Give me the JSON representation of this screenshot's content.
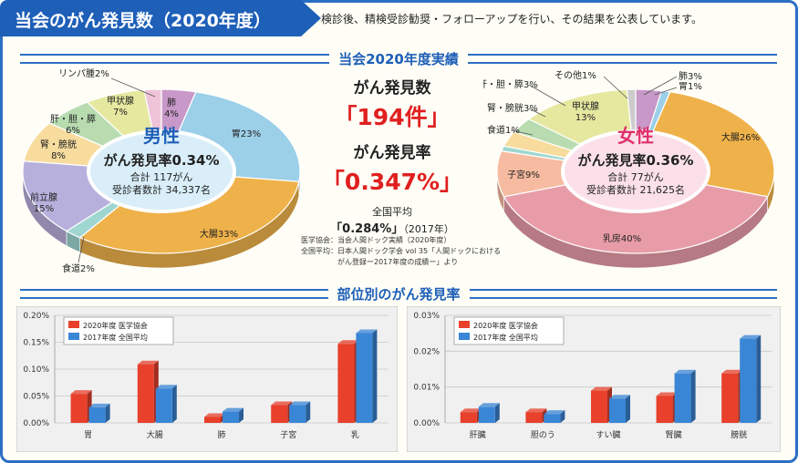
{
  "header": {
    "title": "当会のがん発見数（2020年度）",
    "intro": "検診後、精検受診勧奨・フォローアップを行い、その結果を公表しています。"
  },
  "section1": {
    "title": "当会2020年度実績"
  },
  "section2": {
    "title": "部位別のがん発見率"
  },
  "summary": {
    "count_label": "がん発見数",
    "count_value": "「194件」",
    "rate_label": "がん発見率",
    "rate_value": "「0.347%」",
    "national_label": "全国平均",
    "national_value": "「0.284%」",
    "national_year": "（2017年）"
  },
  "notes": {
    "line1": "医学協会：当会人間ドック実績（2020年度）",
    "line2": "全国平均：日本人間ドック学会 vol 35「人間ドックにおける",
    "line3": "がん登録ー2017年度の成績ー」より"
  },
  "colors": {
    "frame": "#2b6fc4",
    "red": "#e8402b",
    "blue": "#3a86d6",
    "male_center": "#d9eef9",
    "female_center": "#fbe0ea"
  },
  "chart_data": [
    {
      "type": "pie",
      "title": "男性",
      "subtitle": "がん発見率0.34%",
      "total": "合計 117がん",
      "examinees": "受診者数計 34,337名",
      "center_color": "#d9eef9",
      "slices": [
        {
          "label": "肺",
          "value": 4,
          "text": "肺\n4%",
          "color": "#c898c8"
        },
        {
          "label": "胃",
          "value": 23,
          "text": "胃23%",
          "color": "#9ccfe8"
        },
        {
          "label": "大腸",
          "value": 33,
          "text": "大腸33%",
          "color": "#efb24a"
        },
        {
          "label": "食道",
          "value": 2,
          "text": "食道2%",
          "color": "#9fd6d0"
        },
        {
          "label": "前立腺",
          "value": 15,
          "text": "前立腺\n15%",
          "color": "#b8b0dc"
        },
        {
          "label": "腎・膀胱",
          "value": 8,
          "text": "腎・膀胱\n8%",
          "color": "#f7dc9e"
        },
        {
          "label": "肝・胆・膵",
          "value": 6,
          "text": "肝・胆・膵\n6%",
          "color": "#b8dcb0"
        },
        {
          "label": "甲状腺",
          "value": 7,
          "text": "甲状腺\n7%",
          "color": "#e6e8a0"
        },
        {
          "label": "リンパ腫",
          "value": 2,
          "text": "リンパ腫2%",
          "color": "#f0c4d8"
        }
      ]
    },
    {
      "type": "pie",
      "title": "女性",
      "subtitle": "がん発見率0.36%",
      "total": "合計 77がん",
      "examinees": "受診者数計 21,625名",
      "center_color": "#fbe0ea",
      "slices": [
        {
          "label": "肺",
          "value": 3,
          "text": "肺3%",
          "color": "#c898c8"
        },
        {
          "label": "胃",
          "value": 1,
          "text": "胃1%",
          "color": "#9ccfe8"
        },
        {
          "label": "大腸",
          "value": 26,
          "text": "大腸26%",
          "color": "#efb24a"
        },
        {
          "label": "乳房",
          "value": 40,
          "text": "乳房40%",
          "color": "#e89ca8"
        },
        {
          "label": "子宮",
          "value": 9,
          "text": "子宮9%",
          "color": "#f6bba0"
        },
        {
          "label": "食道",
          "value": 1,
          "text": "食道1%",
          "color": "#9fd6d0"
        },
        {
          "label": "腎・膀胱",
          "value": 3,
          "text": "腎・膀胱3%",
          "color": "#f7dc9e"
        },
        {
          "label": "肝・胆・膵",
          "value": 3,
          "text": "肝・胆・膵3%",
          "color": "#b8dcb0"
        },
        {
          "label": "甲状腺",
          "value": 13,
          "text": "甲状腺\n13%",
          "color": "#e6e8a0"
        },
        {
          "label": "その他",
          "value": 1,
          "text": "その他1%",
          "color": "#cccccc"
        }
      ]
    },
    {
      "type": "bar",
      "categories": [
        "胃",
        "大腸",
        "肺",
        "子宮",
        "乳"
      ],
      "ylim": [
        0,
        0.2
      ],
      "yticks": [
        "0.00%",
        "0.05%",
        "0.10%",
        "0.15%",
        "0.20%"
      ],
      "series": [
        {
          "name": "2020年度 医学協会",
          "values": [
            0.054,
            0.109,
            0.011,
            0.033,
            0.147
          ]
        },
        {
          "name": "2017年度 全国平均",
          "values": [
            0.029,
            0.064,
            0.021,
            0.033,
            0.167
          ]
        }
      ]
    },
    {
      "type": "bar",
      "categories": [
        "肝臓",
        "胆のう",
        "すい臓",
        "腎臓",
        "膀胱"
      ],
      "ylim": [
        0,
        0.03
      ],
      "yticks": [
        "0.00%",
        "0.01%",
        "0.02%",
        "0.03%"
      ],
      "series": [
        {
          "name": "2020年度 医学協会",
          "values": [
            0.003,
            0.003,
            0.009,
            0.0075,
            0.0138
          ]
        },
        {
          "name": "2017年度 全国平均",
          "values": [
            0.0045,
            0.0025,
            0.0068,
            0.0138,
            0.0235
          ]
        }
      ]
    }
  ]
}
